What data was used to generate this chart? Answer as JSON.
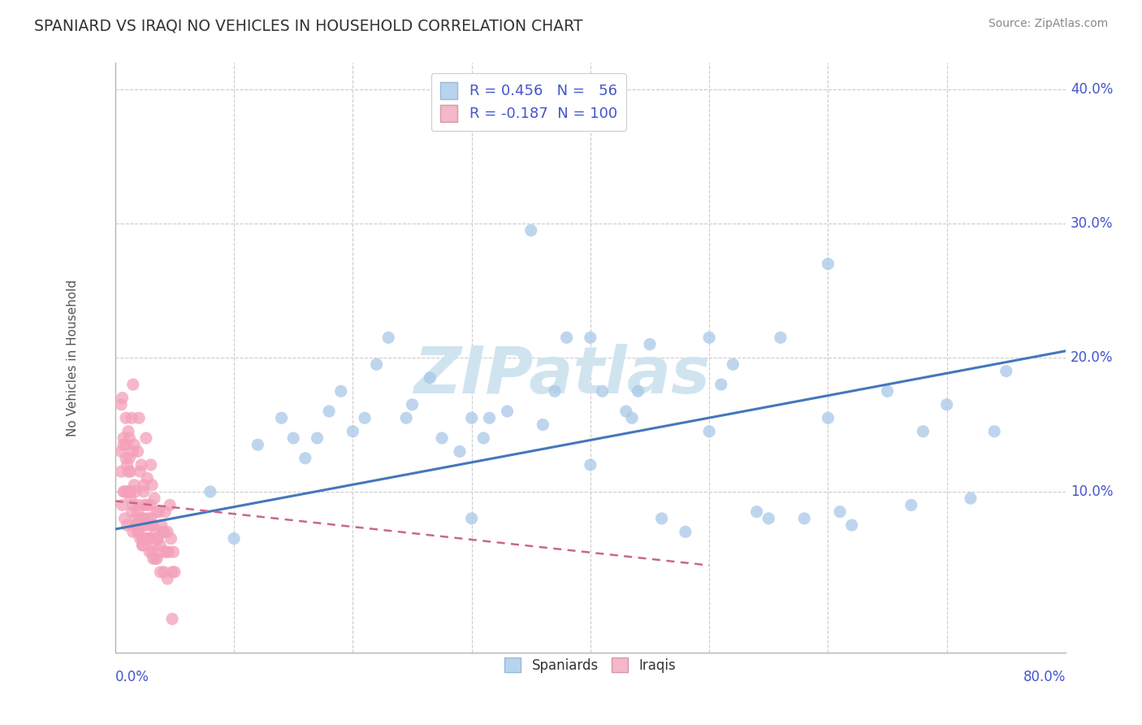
{
  "title": "SPANIARD VS IRAQI NO VEHICLES IN HOUSEHOLD CORRELATION CHART",
  "source": "Source: ZipAtlas.com",
  "ylabel": "No Vehicles in Household",
  "xlim": [
    0.0,
    0.8
  ],
  "ylim": [
    -0.02,
    0.42
  ],
  "dot_color_spaniard": "#a8c8e8",
  "dot_color_iraqi": "#f4a0b8",
  "line_color_spaniard": "#4477bb",
  "line_color_iraqi": "#cc6688",
  "watermark_color": "#d0e4f0",
  "background_color": "#ffffff",
  "grid_color": "#cccccc",
  "title_color": "#333333",
  "axis_label_color": "#4455cc",
  "legend_color": "#4455cc",
  "spaniard_x": [
    0.04,
    0.08,
    0.1,
    0.12,
    0.14,
    0.15,
    0.16,
    0.17,
    0.18,
    0.19,
    0.2,
    0.21,
    0.22,
    0.23,
    0.245,
    0.25,
    0.265,
    0.275,
    0.29,
    0.3,
    0.3,
    0.31,
    0.315,
    0.33,
    0.36,
    0.37,
    0.38,
    0.4,
    0.41,
    0.43,
    0.435,
    0.44,
    0.46,
    0.48,
    0.5,
    0.51,
    0.52,
    0.54,
    0.56,
    0.58,
    0.6,
    0.61,
    0.62,
    0.65,
    0.67,
    0.68,
    0.7,
    0.72,
    0.74,
    0.75,
    0.35,
    0.4,
    0.45,
    0.5,
    0.55,
    0.6
  ],
  "spaniard_y": [
    0.07,
    0.1,
    0.065,
    0.135,
    0.155,
    0.14,
    0.125,
    0.14,
    0.16,
    0.175,
    0.145,
    0.155,
    0.195,
    0.215,
    0.155,
    0.165,
    0.185,
    0.14,
    0.13,
    0.155,
    0.08,
    0.14,
    0.155,
    0.16,
    0.15,
    0.175,
    0.215,
    0.12,
    0.175,
    0.16,
    0.155,
    0.175,
    0.08,
    0.07,
    0.145,
    0.18,
    0.195,
    0.085,
    0.215,
    0.08,
    0.155,
    0.085,
    0.075,
    0.175,
    0.09,
    0.145,
    0.165,
    0.095,
    0.145,
    0.19,
    0.295,
    0.215,
    0.21,
    0.215,
    0.08,
    0.27
  ],
  "iraqi_x": [
    0.005,
    0.006,
    0.007,
    0.008,
    0.009,
    0.01,
    0.01,
    0.011,
    0.012,
    0.013,
    0.014,
    0.015,
    0.015,
    0.016,
    0.017,
    0.018,
    0.019,
    0.02,
    0.02,
    0.021,
    0.022,
    0.023,
    0.024,
    0.025,
    0.026,
    0.027,
    0.028,
    0.029,
    0.03,
    0.03,
    0.031,
    0.032,
    0.033,
    0.034,
    0.035,
    0.036,
    0.037,
    0.038,
    0.039,
    0.04,
    0.041,
    0.042,
    0.043,
    0.044,
    0.045,
    0.046,
    0.047,
    0.048,
    0.049,
    0.05,
    0.005,
    0.007,
    0.009,
    0.011,
    0.013,
    0.015,
    0.017,
    0.019,
    0.021,
    0.023,
    0.025,
    0.027,
    0.029,
    0.031,
    0.033,
    0.035,
    0.005,
    0.008,
    0.011,
    0.014,
    0.017,
    0.02,
    0.023,
    0.026,
    0.029,
    0.032,
    0.035,
    0.038,
    0.041,
    0.044,
    0.007,
    0.01,
    0.013,
    0.016,
    0.019,
    0.022,
    0.025,
    0.028,
    0.031,
    0.034,
    0.006,
    0.009,
    0.012,
    0.015,
    0.018,
    0.021,
    0.024,
    0.027,
    0.03,
    0.048
  ],
  "iraqi_y": [
    0.165,
    0.09,
    0.135,
    0.08,
    0.125,
    0.1,
    0.075,
    0.145,
    0.125,
    0.095,
    0.155,
    0.18,
    0.07,
    0.135,
    0.1,
    0.075,
    0.13,
    0.155,
    0.09,
    0.08,
    0.12,
    0.065,
    0.105,
    0.08,
    0.14,
    0.11,
    0.08,
    0.065,
    0.12,
    0.09,
    0.105,
    0.075,
    0.095,
    0.07,
    0.085,
    0.065,
    0.085,
    0.06,
    0.075,
    0.055,
    0.07,
    0.085,
    0.055,
    0.07,
    0.055,
    0.09,
    0.065,
    0.04,
    0.055,
    0.04,
    0.115,
    0.1,
    0.135,
    0.115,
    0.1,
    0.09,
    0.08,
    0.07,
    0.065,
    0.06,
    0.09,
    0.075,
    0.065,
    0.075,
    0.06,
    0.065,
    0.13,
    0.1,
    0.1,
    0.085,
    0.075,
    0.07,
    0.06,
    0.065,
    0.055,
    0.05,
    0.05,
    0.04,
    0.04,
    0.035,
    0.14,
    0.12,
    0.115,
    0.105,
    0.085,
    0.08,
    0.075,
    0.065,
    0.055,
    0.05,
    0.17,
    0.155,
    0.14,
    0.13,
    0.075,
    0.115,
    0.1,
    0.09,
    0.08,
    0.005
  ],
  "spaniard_trendline_x": [
    0.0,
    0.8
  ],
  "spaniard_trendline_y": [
    0.072,
    0.205
  ],
  "iraqi_trendline_x": [
    0.0,
    0.5
  ],
  "iraqi_trendline_y": [
    0.093,
    0.045
  ]
}
